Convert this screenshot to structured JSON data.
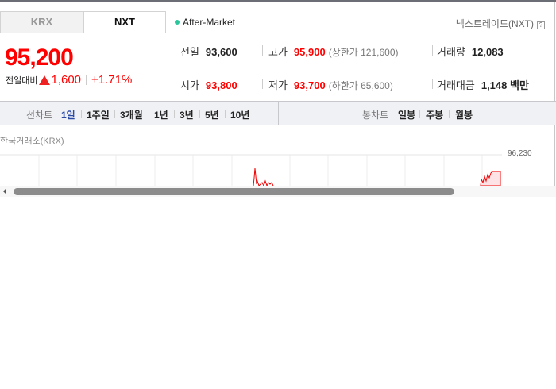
{
  "tabs": [
    {
      "label": "KRX",
      "active": false
    },
    {
      "label": "NXT",
      "active": true
    }
  ],
  "market_status": "After-Market",
  "provider": "넥스트레이드(NXT)",
  "help_icon": "?",
  "price": {
    "current": "95,200",
    "change_label": "전일대비",
    "change": "1,600",
    "change_pct": "+1.71%",
    "direction": "up"
  },
  "stats": {
    "prev_close": {
      "label": "전일",
      "value": "93,600"
    },
    "high": {
      "label": "고가",
      "value": "95,900",
      "limit": "(상한가 121,600)"
    },
    "volume": {
      "label": "거래량",
      "value": "12,083"
    },
    "open": {
      "label": "시가",
      "value": "93,800"
    },
    "low": {
      "label": "저가",
      "value": "93,700",
      "limit": "(하한가 65,600)"
    },
    "amount": {
      "label": "거래대금",
      "value": "1,148 백만"
    }
  },
  "line_chart": {
    "label": "선차트",
    "periods": [
      "1일",
      "1주일",
      "3개월",
      "1년",
      "3년",
      "5년",
      "10년"
    ],
    "active": "1일"
  },
  "candle_chart": {
    "label": "봉차트",
    "periods": [
      "일봉",
      "주봉",
      "월봉"
    ]
  },
  "chart": {
    "exchange_label": "한국거래소(KRX)",
    "max_label": "96,230",
    "line_color": "#f00000"
  },
  "colors": {
    "up": "#ff0000",
    "active_period": "#2a4aa6",
    "status_dot": "#2bc59b"
  }
}
